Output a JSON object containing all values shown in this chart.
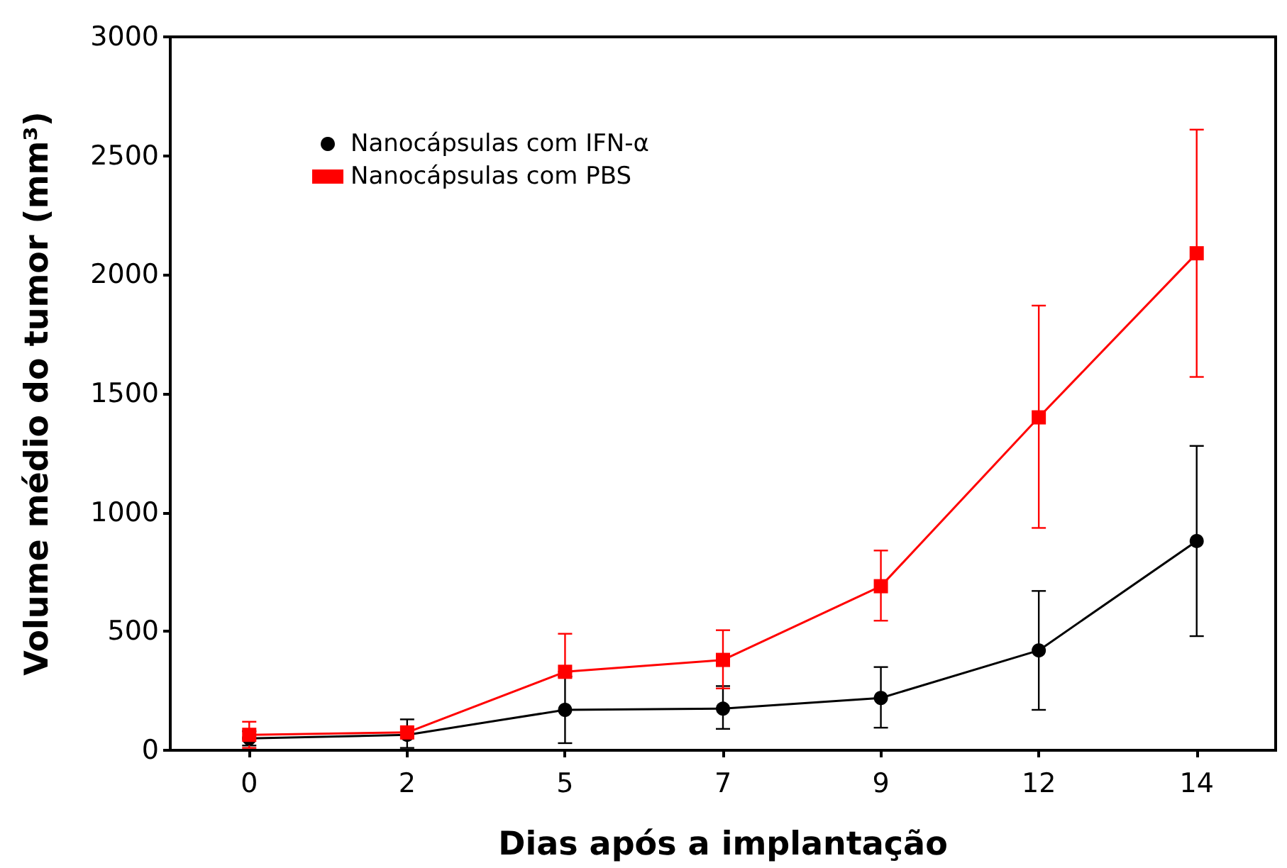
{
  "chart_data": {
    "type": "line",
    "xlabel": "Dias após a implantação",
    "ylabel": "Volume médio do tumor (mm³)",
    "categories": [
      "0",
      "2",
      "5",
      "7",
      "9",
      "12",
      "14"
    ],
    "ylim": [
      0,
      3000
    ],
    "yticks": [
      0,
      500,
      1000,
      1500,
      2000,
      2500,
      3000
    ],
    "grid": false,
    "legend": "top left",
    "series": [
      {
        "name": "Nanocápsulas com IFN-α",
        "color": "#000000",
        "marker": "circle",
        "values": [
          50,
          65,
          170,
          175,
          220,
          420,
          880
        ],
        "errors": [
          [
            20,
            80
          ],
          [
            10,
            130
          ],
          [
            30,
            310
          ],
          [
            90,
            270
          ],
          [
            95,
            350
          ],
          [
            170,
            670
          ],
          [
            480,
            1280
          ]
        ]
      },
      {
        "name": "Nanocápsulas com PBS",
        "color": "#ff0000",
        "marker": "square",
        "values": [
          65,
          75,
          330,
          380,
          690,
          1400,
          2090
        ],
        "errors": [
          [
            10,
            120
          ],
          null,
          [
            330,
            490
          ],
          [
            260,
            505
          ],
          [
            545,
            840
          ],
          [
            935,
            1870
          ],
          [
            1570,
            2610
          ]
        ]
      }
    ]
  }
}
